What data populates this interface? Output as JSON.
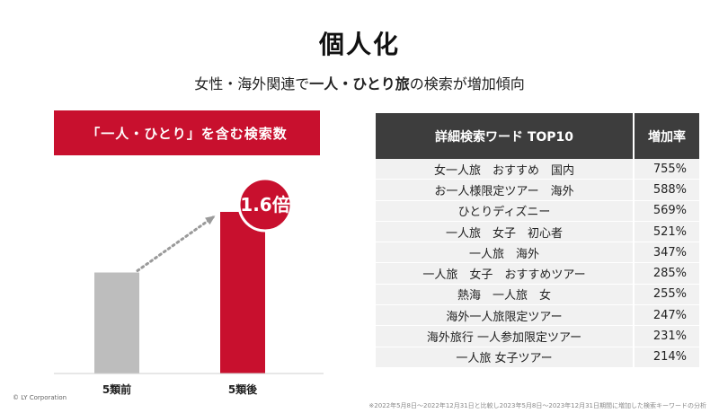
{
  "title": "個人化",
  "subtitle": {
    "prefix": "女性・海外関連で",
    "highlight": "一人・ひとり旅",
    "suffix": "の検索が増加傾向"
  },
  "left_panel_title": "「一人・ひとり」を含む検索数",
  "badge_text": "1.6倍",
  "colors": {
    "accent": "#c8102e",
    "before_bar": "#bdbdbd",
    "header_dark": "#3d3d3d"
  },
  "chart_data": {
    "type": "bar",
    "categories": [
      "5類前",
      "5類後"
    ],
    "values": [
      1.0,
      1.6
    ],
    "annotation": "1.6倍",
    "colors": [
      "#bdbdbd",
      "#c8102e"
    ]
  },
  "table": {
    "headers": [
      "詳細検索ワード TOP10",
      "増加率"
    ],
    "rows": [
      [
        "女一人旅　おすすめ　国内",
        "755%"
      ],
      [
        "お一人様限定ツアー　海外",
        "588%"
      ],
      [
        "ひとりディズニー",
        "569%"
      ],
      [
        "一人旅　女子　初心者",
        "521%"
      ],
      [
        "一人旅　海外",
        "347%"
      ],
      [
        "一人旅　女子　おすすめツアー",
        "285%"
      ],
      [
        "熱海　一人旅　女",
        "255%"
      ],
      [
        "海外一人旅限定ツアー",
        "247%"
      ],
      [
        "海外旅行 一人参加限定ツアー",
        "231%"
      ],
      [
        "一人旅 女子ツアー",
        "214%"
      ]
    ]
  },
  "footer": {
    "copyright": "© LY Corporation",
    "note": "※2022年5月8日〜2022年12月31日と比較し2023年5月8日〜2023年12月31日期間に増加した検索キーワードの分析"
  }
}
